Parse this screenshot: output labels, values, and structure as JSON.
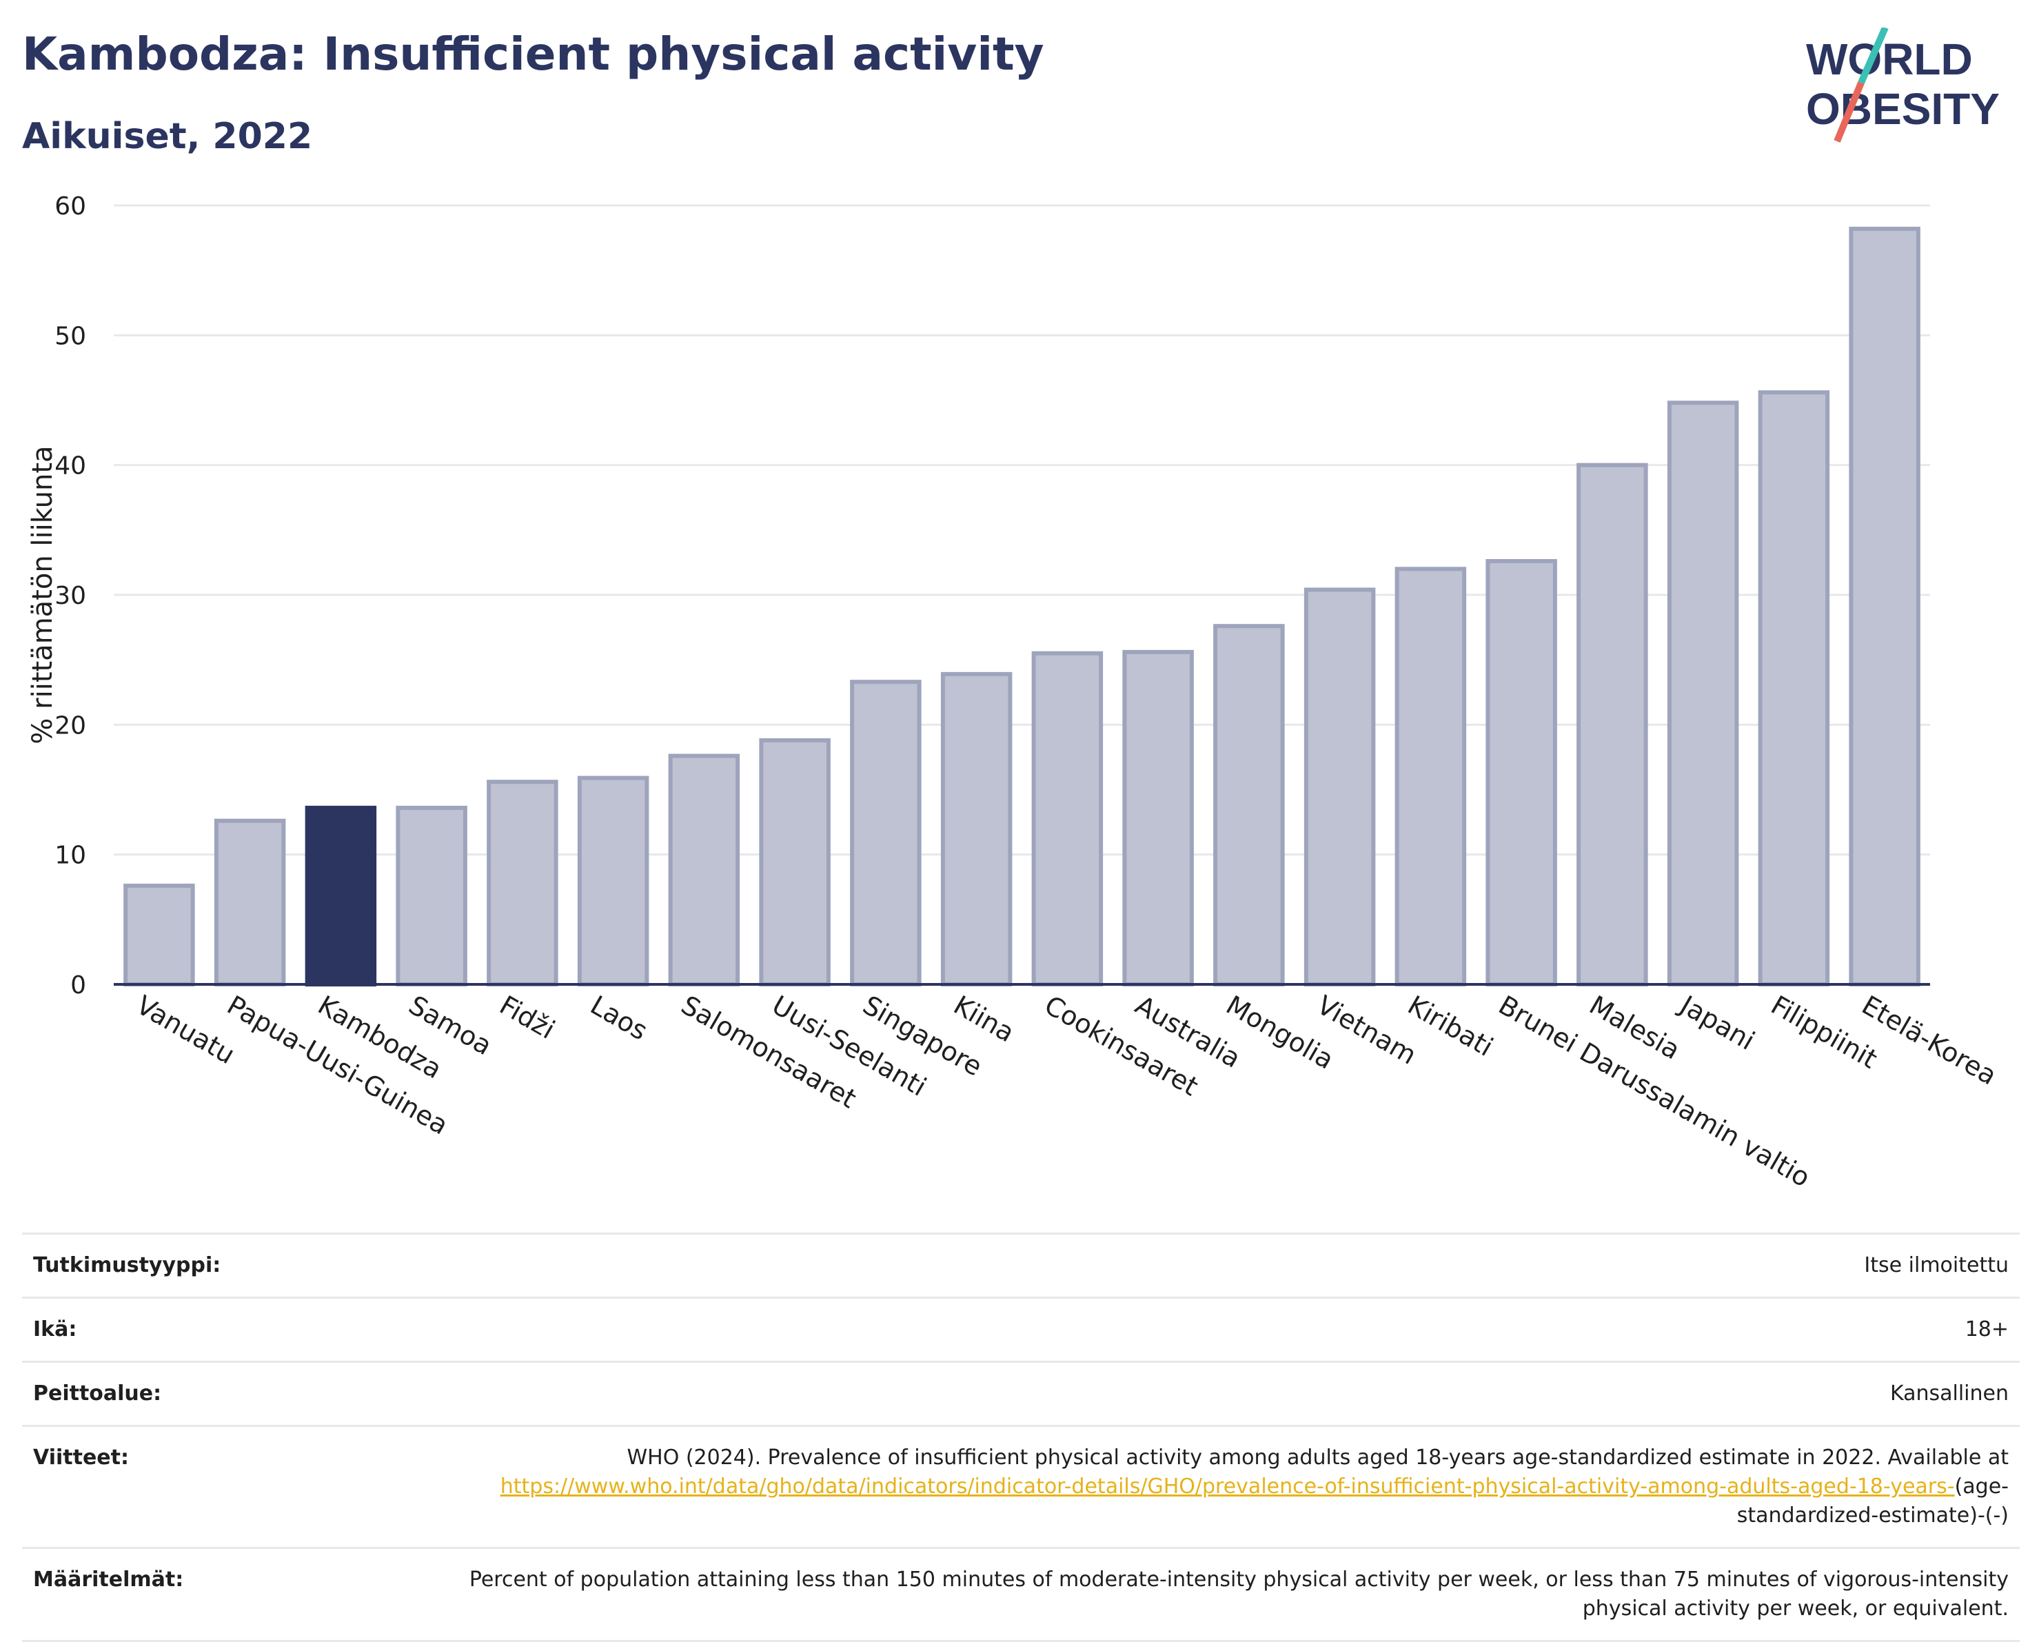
{
  "header": {
    "title": "Kambodza: Insufficient physical activity",
    "subtitle": "Aikuiset, 2022"
  },
  "logo": {
    "line1": "WORLD",
    "line2": "OBESITY",
    "text_color": "#2b3560",
    "accent1": "#3cbfb4",
    "accent2": "#e8675a"
  },
  "colors": {
    "bar": "#bec2d2",
    "bar_border": "#9ea4bc",
    "highlight": "#2b3560",
    "grid": "#e6e8ec",
    "axis": "#2b3560"
  },
  "chart_data": {
    "type": "bar",
    "title": "Kambodza: Insufficient physical activity",
    "subtitle": "Aikuiset, 2022",
    "ylabel": "% riittämätön liikunta",
    "xlabel": "",
    "ylim": [
      0,
      60
    ],
    "yticks": [
      0,
      10,
      20,
      30,
      40,
      50,
      60
    ],
    "grid": true,
    "highlight": "Kambodza",
    "categories": [
      "Vanuatu",
      "Papua-Uusi-Guinea",
      "Kambodza",
      "Samoa",
      "Fidži",
      "Laos",
      "Salomonsaaret",
      "Uusi-Seelanti",
      "Singapore",
      "Kiina",
      "Cookinsaaret",
      "Australia",
      "Mongolia",
      "Vietnam",
      "Kiribati",
      "Brunei Darussalamin valtio",
      "Malesia",
      "Japani",
      "Filippiinit",
      "Etelä-Korea"
    ],
    "values": [
      7.6,
      12.6,
      13.6,
      13.6,
      15.6,
      15.9,
      17.6,
      18.8,
      23.3,
      23.9,
      25.5,
      25.6,
      27.6,
      30.4,
      32.0,
      32.6,
      40.0,
      44.8,
      45.6,
      58.2
    ]
  },
  "info": [
    {
      "label": "Tutkimustyyppi:",
      "value": "Itse ilmoitettu"
    },
    {
      "label": "Ikä:",
      "value": "18+"
    },
    {
      "label": "Peittoalue:",
      "value": "Kansallinen"
    },
    {
      "label": "Viitteet:",
      "value": "WHO (2024). Prevalence of insufficient physical activity among adults aged 18-years age-standardized estimate in 2022. Available at",
      "link": "https://www.who.int/data/gho/data/indicators/indicator-details/GHO/prevalence-of-insufficient-physical-activity-among-adults-aged-18-years-",
      "after": "(age-standardized-estimate)-(-)"
    },
    {
      "label": "Määritelmät:",
      "value": "Percent of population attaining less than 150 minutes of moderate-intensity physical activity per week, or less than 75 minutes of vigorous-intensity physical activity per week, or equivalent."
    }
  ]
}
